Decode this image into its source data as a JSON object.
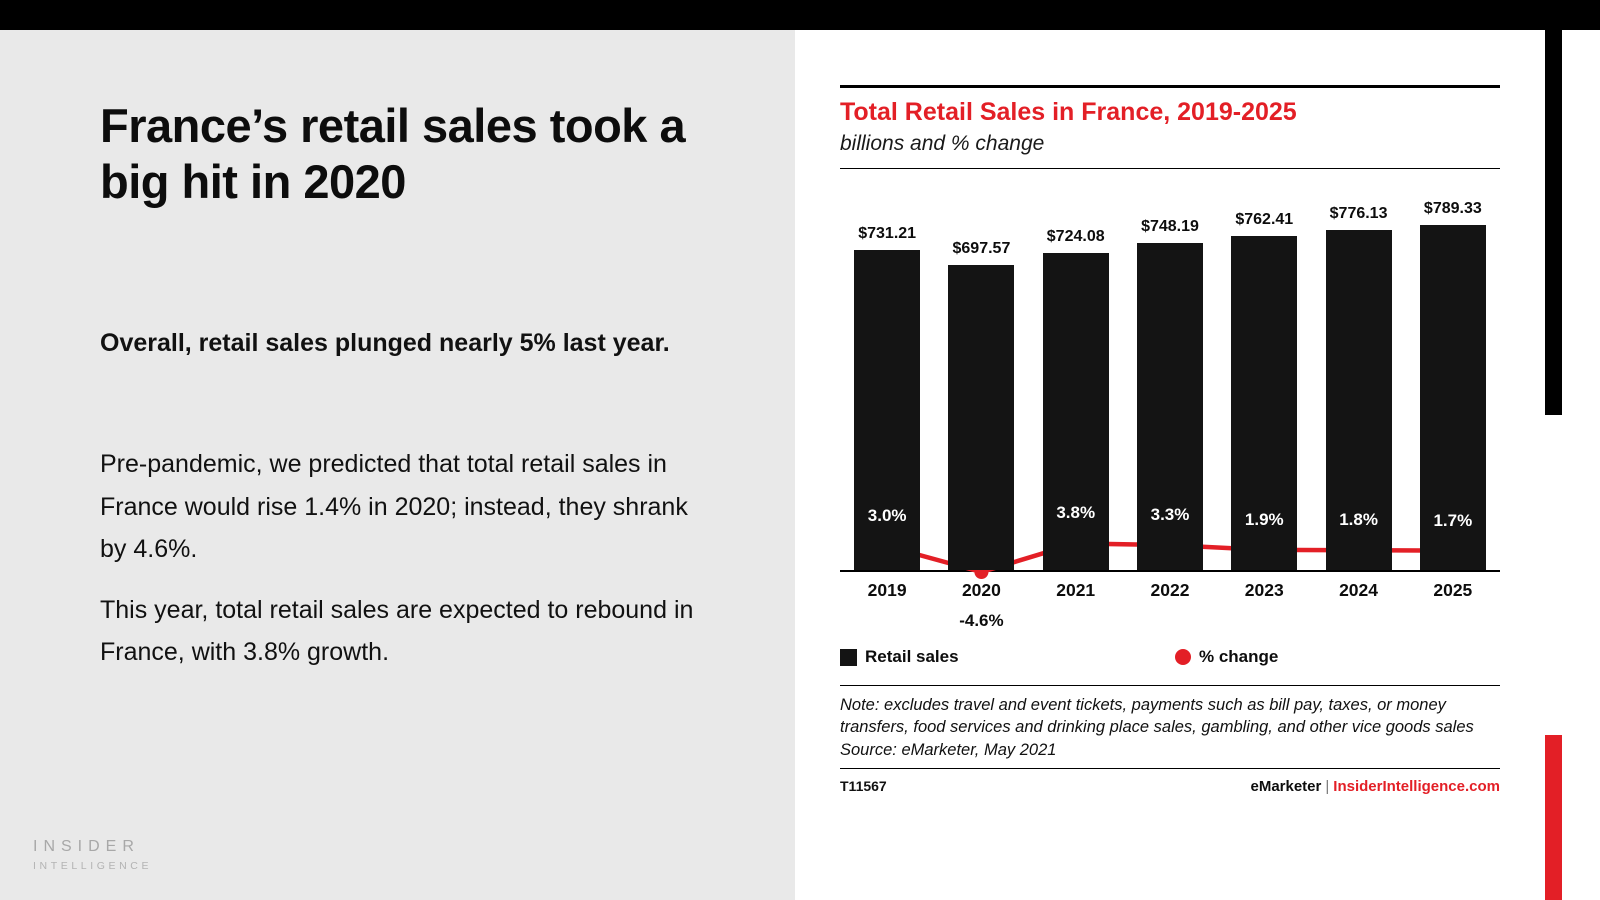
{
  "colors": {
    "accent_red": "#e31f26",
    "bar_black": "#141414",
    "left_bg": "#e9e9e9"
  },
  "left": {
    "title": "France’s retail sales took a big hit in 2020",
    "lead": "Overall, retail sales plunged nearly 5% last year.",
    "para1": "Pre-pandemic, we predicted that total retail sales in France would rise 1.4% in 2020; instead, they shrank by 4.6%.",
    "para2": "This year, total retail sales are expected to rebound in France, with 3.8% growth.",
    "logo_line1": "INSIDER",
    "logo_line2": "INTELLIGENCE"
  },
  "chart": {
    "title": "Total Retail Sales in France, 2019-2025",
    "subtitle": "billions and % change",
    "legend": [
      {
        "label": "Retail sales"
      },
      {
        "label": "% change"
      }
    ],
    "note": "Note: excludes travel and event tickets, payments such as bill pay, taxes, or money transfers, food services and drinking place sales, gambling, and other vice goods sales",
    "source": "Source: eMarketer, May 2021",
    "footer_id": "T11567",
    "footer_brand": "eMarketer",
    "footer_sep": "|",
    "footer_site": "InsiderIntelligence.com"
  },
  "chart_data": {
    "type": "bar",
    "title": "Total Retail Sales in France, 2019-2025",
    "subtitle": "billions and % change",
    "categories": [
      "2019",
      "2020",
      "2021",
      "2022",
      "2023",
      "2024",
      "2025"
    ],
    "series": [
      {
        "name": "Retail sales",
        "type": "bar",
        "values": [
          731.21,
          697.57,
          724.08,
          748.19,
          762.41,
          776.13,
          789.33
        ],
        "labels": [
          "$731.21",
          "$697.57",
          "$724.08",
          "$748.19",
          "$762.41",
          "$776.13",
          "$789.33"
        ]
      },
      {
        "name": "% change",
        "type": "line",
        "values": [
          3.0,
          -4.6,
          3.8,
          3.3,
          1.9,
          1.8,
          1.7
        ],
        "labels": [
          "3.0%",
          "-4.6%",
          "3.8%",
          "3.3%",
          "1.9%",
          "1.8%",
          "1.7%"
        ]
      }
    ],
    "ylim": [
      0,
      800
    ],
    "grid": false,
    "legend_position": "bottom"
  }
}
